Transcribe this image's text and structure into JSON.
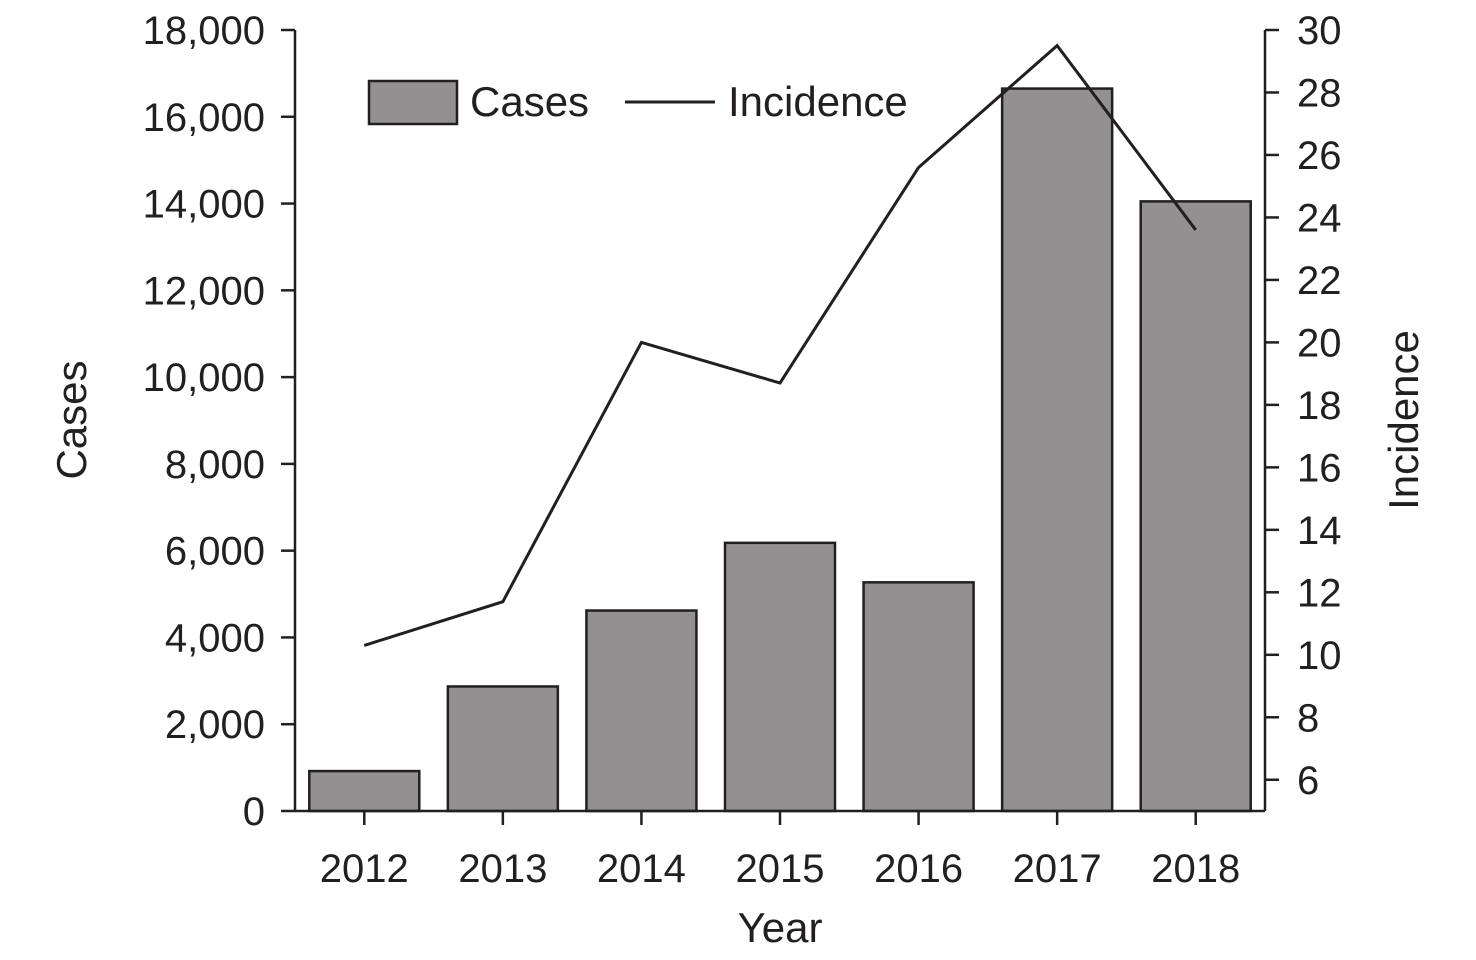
{
  "chart_data": {
    "type": "bar",
    "title": "",
    "xlabel": "Year",
    "ylabel": "Cases",
    "y2label": "Incidence",
    "categories": [
      "2012",
      "2013",
      "2014",
      "2015",
      "2016",
      "2017",
      "2018"
    ],
    "ylim": [
      0,
      18000
    ],
    "y_ticks": [
      0,
      2000,
      4000,
      6000,
      8000,
      10000,
      12000,
      14000,
      16000,
      18000
    ],
    "y_tick_labels": [
      "0",
      "2,000",
      "4,000",
      "6,000",
      "8,000",
      "10,000",
      "12,000",
      "14,000",
      "16,000",
      "18,000"
    ],
    "y2lim": [
      5,
      30
    ],
    "y2_ticks": [
      6,
      8,
      10,
      12,
      14,
      16,
      18,
      20,
      22,
      24,
      26,
      28,
      30
    ],
    "y2_tick_labels": [
      "6",
      "8",
      "10",
      "12",
      "14",
      "16",
      "18",
      "20",
      "22",
      "24",
      "26",
      "28",
      "30"
    ],
    "series": [
      {
        "name": "Cases",
        "type": "bar",
        "axis": "left",
        "color": "#929091",
        "values": [
          920,
          2870,
          4620,
          6180,
          5270,
          16650,
          14050
        ]
      },
      {
        "name": "Incidence",
        "type": "line",
        "axis": "right",
        "color": "#231f20",
        "values": [
          10.3,
          11.7,
          20.0,
          18.7,
          25.6,
          29.5,
          23.6
        ]
      }
    ],
    "legend_position": "top-left",
    "grid": false
  }
}
